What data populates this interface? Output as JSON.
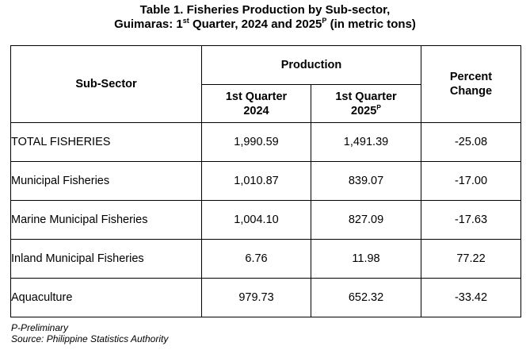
{
  "title": {
    "line1": "Table 1. Fisheries Production by Sub-sector,",
    "line2_prefix": "Guimaras: 1",
    "line2_sup1": "st",
    "line2_mid": " Quarter, 2024 and 2025",
    "line2_sup2": "P",
    "line2_suffix": " (in metric tons)"
  },
  "header": {
    "sub_sector": "Sub-Sector",
    "production": "Production",
    "percent_change_1": "Percent",
    "percent_change_2": "Change",
    "col_2024_line1": "1st Quarter",
    "col_2024_line2": "2024",
    "col_2025_line1": "1st Quarter",
    "col_2025_line2": "2025",
    "col_2025_sup": "P"
  },
  "rows": [
    {
      "label": "TOTAL FISHERIES",
      "q1_2024": "1,990.59",
      "q1_2025": "1,491.39",
      "change": "-25.08"
    },
    {
      "label": "Municipal Fisheries",
      "q1_2024": "1,010.87",
      "q1_2025": "839.07",
      "change": "-17.00"
    },
    {
      "label": "Marine Municipal Fisheries",
      "q1_2024": "1,004.10",
      "q1_2025": "827.09",
      "change": "-17.63"
    },
    {
      "label": "Inland Municipal Fisheries",
      "q1_2024": "6.76",
      "q1_2025": "11.98",
      "change": "77.22"
    },
    {
      "label": "Aquaculture",
      "q1_2024": "979.73",
      "q1_2025": "652.32",
      "change": "-33.42"
    }
  ],
  "footnotes": {
    "preliminary": "P-Preliminary",
    "source": "Source: Philippine Statistics Authority"
  }
}
